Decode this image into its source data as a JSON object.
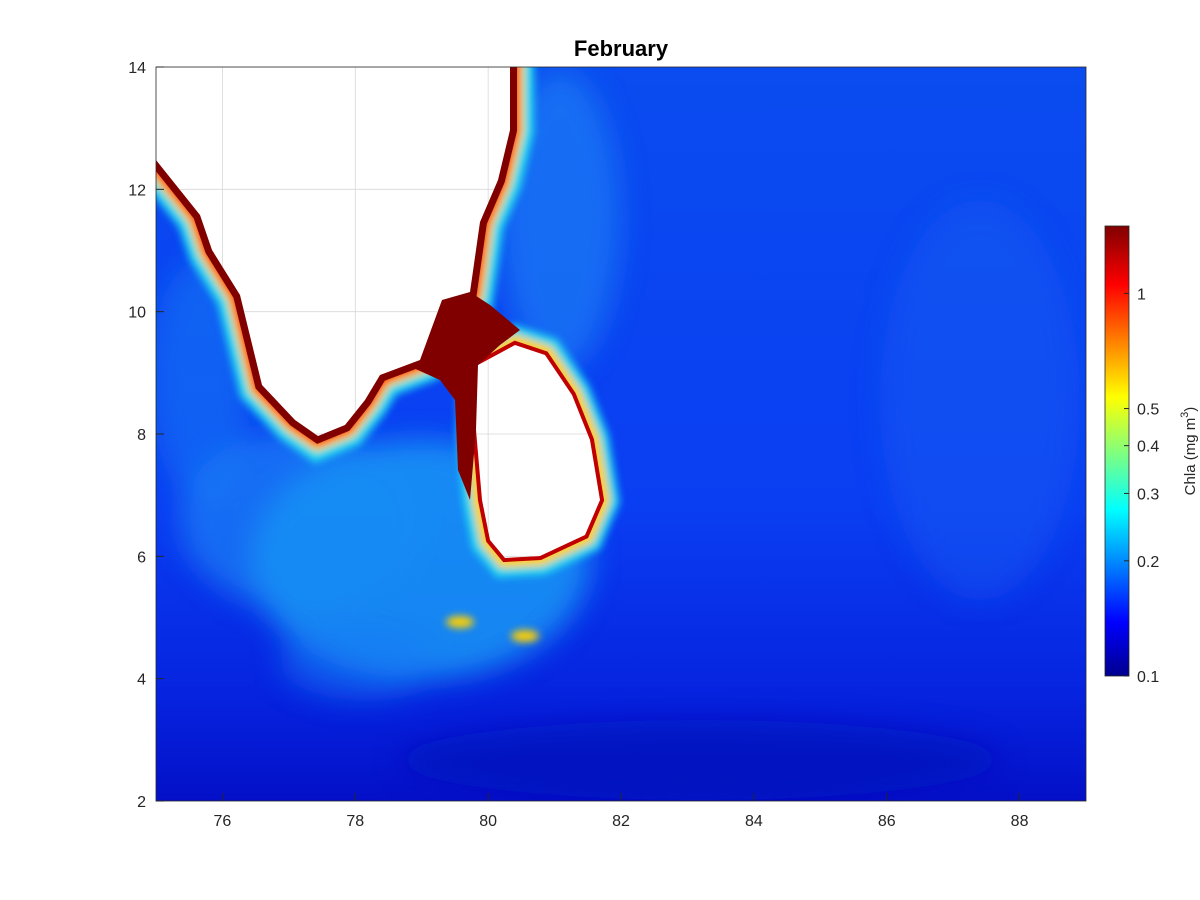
{
  "chart_data": {
    "type": "heatmap",
    "title": "February",
    "xlabel": "",
    "ylabel": "",
    "xlim": [
      75,
      89
    ],
    "ylim": [
      2,
      14
    ],
    "xticks": [
      76,
      78,
      80,
      82,
      84,
      86,
      88
    ],
    "yticks": [
      2,
      4,
      6,
      8,
      10,
      12,
      14
    ],
    "grid": true,
    "colormap": "jet",
    "colorbar": {
      "label_main": "Chla (mg m",
      "label_sup": "3",
      "label_end": ")",
      "scale": "log",
      "range": [
        0.1,
        1.5
      ],
      "ticks": [
        0.1,
        0.2,
        0.3,
        0.4,
        0.5,
        1
      ],
      "tick_labels": [
        "0.1",
        "0.2",
        "0.3",
        "0.4",
        "0.5",
        "1"
      ],
      "placement": "right"
    },
    "land_color": "#ffffff",
    "typical_open_ocean_value": 0.15,
    "coastal_max_value": 1.5
  }
}
